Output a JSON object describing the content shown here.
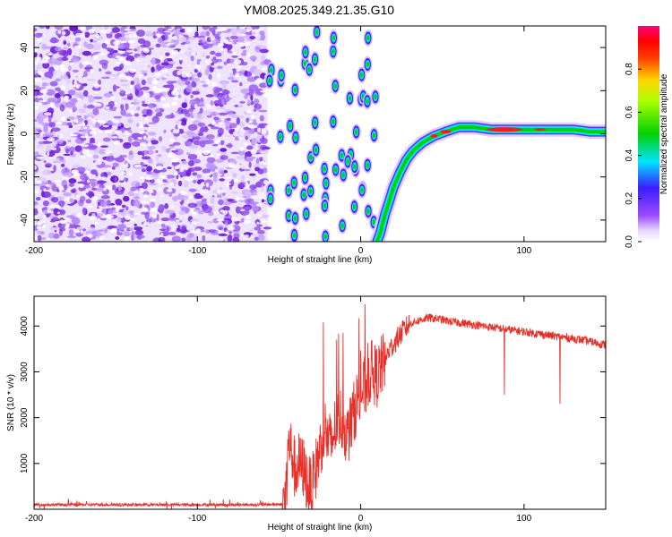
{
  "title": "YM08.2025.349.21.35.G10",
  "colors": {
    "snr_line": "#e8302a",
    "noise_purple": "#7a2be0",
    "axis": "#000000",
    "background": "#ffffff"
  },
  "chart_data": [
    {
      "type": "heatmap",
      "title": "YM08.2025.349.21.35.G10",
      "xlabel": "Height of straight line (km)",
      "ylabel": "Frequency (Hz)",
      "xlim": [
        -200,
        150
      ],
      "ylim": [
        -50,
        50
      ],
      "x_ticks": [
        "-200",
        "-100",
        "0",
        "100"
      ],
      "y_ticks": [
        "-40",
        "-20",
        "0",
        "20",
        "40"
      ],
      "colorbar": {
        "label": "Normalized spectral amplitude",
        "range": [
          0,
          1
        ],
        "ticks": [
          "0.0",
          "0.2",
          "0.4",
          "0.6",
          "0.8"
        ],
        "colormap": "rainbow (white-purple-blue-cyan-green-yellow-red-magenta)"
      },
      "regions": [
        {
          "label": "diffuse noise",
          "x_range": [
            -200,
            -57
          ],
          "amplitude": 0.05
        },
        {
          "label": "aliased blobs",
          "x_range": [
            -57,
            12
          ],
          "amplitude": 0.35
        }
      ],
      "series": [
        {
          "x": [
            10,
            12,
            15,
            18,
            20,
            24,
            28,
            32,
            38,
            45,
            52,
            60,
            70,
            80,
            90,
            100,
            110,
            120,
            130,
            140,
            150
          ],
          "y": [
            -50,
            -46,
            -37,
            -30,
            -25,
            -18,
            -12,
            -8,
            -4,
            -1,
            1,
            3,
            3,
            2,
            2,
            2,
            2,
            2,
            2,
            1,
            1
          ]
        }
      ]
    },
    {
      "type": "line",
      "xlabel": "Height of straight line (km)",
      "ylabel": "SNR (10 * v/v)",
      "xlim": [
        -200,
        150
      ],
      "ylim": [
        0,
        4650
      ],
      "x_ticks": [
        "-200",
        "-100",
        "0",
        "100"
      ],
      "y_ticks": [
        "1000",
        "2000",
        "3000",
        "4000"
      ],
      "series": [
        {
          "x": [
            -200,
            -150,
            -100,
            -60,
            -48,
            -46,
            -44,
            -42,
            -40,
            -38,
            -35,
            -32,
            -30,
            -28,
            -25,
            -22,
            -20,
            -18,
            -15,
            -12,
            -8,
            -5,
            -2,
            0,
            3,
            6,
            10,
            14,
            18,
            22,
            26,
            30,
            34,
            38,
            42,
            48,
            55,
            65,
            75,
            85,
            95,
            105,
            115,
            125,
            135,
            142,
            148,
            150
          ],
          "y": [
            100,
            100,
            100,
            100,
            110,
            250,
            1500,
            1200,
            800,
            1000,
            900,
            500,
            450,
            800,
            1300,
            1800,
            1500,
            1400,
            1900,
            2000,
            1600,
            2000,
            2400,
            2500,
            2700,
            3000,
            2900,
            3200,
            3500,
            3700,
            3900,
            4050,
            4100,
            4150,
            4180,
            4150,
            4100,
            4050,
            4000,
            3950,
            3900,
            3850,
            3800,
            3750,
            3700,
            3650,
            3600,
            3600
          ]
        }
      ]
    }
  ]
}
